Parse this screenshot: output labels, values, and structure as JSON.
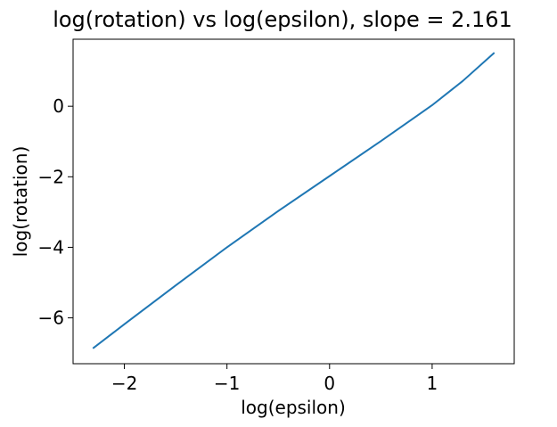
{
  "chart_data": {
    "type": "line",
    "title": "log(rotation) vs log(epsilon), slope = 2.161",
    "xlabel": "log(epsilon)",
    "ylabel": "log(rotation)",
    "xlim": [
      -2.5,
      1.8
    ],
    "ylim": [
      -7.3,
      1.9
    ],
    "xticks": [
      -2,
      -1,
      0,
      1
    ],
    "xtick_labels": [
      "−2",
      "−1",
      "0",
      "1"
    ],
    "yticks": [
      -6,
      -4,
      -2,
      0
    ],
    "ytick_labels": [
      "−6",
      "−4",
      "−2",
      "0"
    ],
    "grid": false,
    "legend": "none",
    "series": [
      {
        "color": "#1f77b4",
        "x": [
          -2.3,
          -2.0,
          -1.5,
          -1.0,
          -0.5,
          0.0,
          0.5,
          1.0,
          1.3,
          1.6
        ],
        "y": [
          -6.85,
          -6.18,
          -5.08,
          -4.0,
          -2.97,
          -1.98,
          -0.99,
          0.03,
          0.72,
          1.5
        ]
      }
    ]
  }
}
